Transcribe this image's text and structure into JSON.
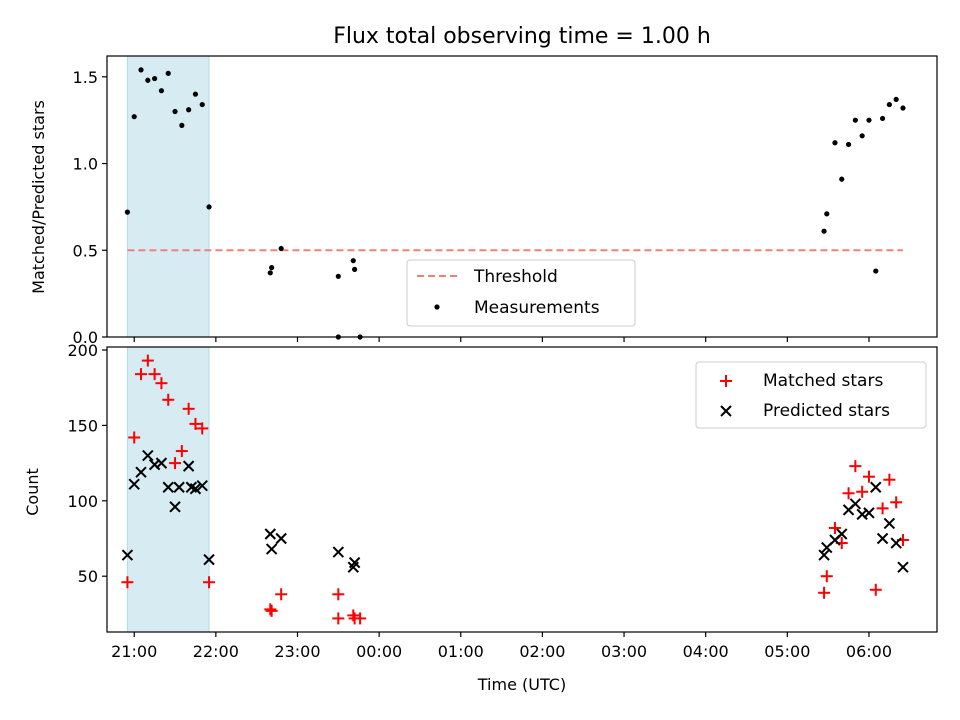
{
  "chart_data": [
    {
      "type": "scatter",
      "title": "Flux total observing time = 1.00 h",
      "xlabel": "",
      "ylabel": "Matched/Predicted stars",
      "xlim": [
        "20:40",
        "06:50"
      ],
      "ylim": [
        0,
        1.62
      ],
      "yticks": [
        {
          "value": 0,
          "label": "0.0"
        },
        {
          "value": 0.5,
          "label": "0.5"
        },
        {
          "value": 1.0,
          "label": "1.0"
        },
        {
          "value": 1.5,
          "label": "1.5"
        }
      ],
      "shaded_span": {
        "x": [
          "20:55",
          "21:55"
        ],
        "color": "#add8e6"
      },
      "threshold": {
        "name": "Threshold",
        "value": 0.5,
        "x": [
          "20:55",
          "06:25"
        ],
        "color": "#f08080"
      },
      "legend": {
        "placement": "lower-center",
        "entries": [
          "Threshold",
          "Measurements"
        ]
      },
      "series": [
        {
          "name": "Measurements",
          "color": "#000000",
          "points": [
            {
              "x": "20:55",
              "y": 0.72
            },
            {
              "x": "21:00",
              "y": 1.27
            },
            {
              "x": "21:05",
              "y": 1.54
            },
            {
              "x": "21:10",
              "y": 1.48
            },
            {
              "x": "21:15",
              "y": 1.49
            },
            {
              "x": "21:20",
              "y": 1.42
            },
            {
              "x": "21:25",
              "y": 1.52
            },
            {
              "x": "21:30",
              "y": 1.3
            },
            {
              "x": "21:35",
              "y": 1.22
            },
            {
              "x": "21:40",
              "y": 1.31
            },
            {
              "x": "21:45",
              "y": 1.4
            },
            {
              "x": "21:50",
              "y": 1.34
            },
            {
              "x": "21:55",
              "y": 0.75
            },
            {
              "x": "22:40",
              "y": 0.37
            },
            {
              "x": "22:41",
              "y": 0.4
            },
            {
              "x": "22:48",
              "y": 0.51
            },
            {
              "x": "23:30",
              "y": 0.35
            },
            {
              "x": "23:30",
              "y": 0.0
            },
            {
              "x": "23:41",
              "y": 0.44
            },
            {
              "x": "23:42",
              "y": 0.39
            },
            {
              "x": "23:46",
              "y": 0.0
            },
            {
              "x": "05:27",
              "y": 0.61
            },
            {
              "x": "05:29",
              "y": 0.71
            },
            {
              "x": "05:35",
              "y": 1.12
            },
            {
              "x": "05:40",
              "y": 0.91
            },
            {
              "x": "05:45",
              "y": 1.11
            },
            {
              "x": "05:50",
              "y": 1.25
            },
            {
              "x": "05:55",
              "y": 1.16
            },
            {
              "x": "06:00",
              "y": 1.25
            },
            {
              "x": "06:05",
              "y": 0.38
            },
            {
              "x": "06:10",
              "y": 1.26
            },
            {
              "x": "06:15",
              "y": 1.34
            },
            {
              "x": "06:20",
              "y": 1.37
            },
            {
              "x": "06:25",
              "y": 1.32
            }
          ]
        }
      ]
    },
    {
      "type": "scatter",
      "title": "",
      "xlabel": "Time (UTC)",
      "ylabel": "Count",
      "xlim": [
        "20:40",
        "06:50"
      ],
      "ylim": [
        13,
        202
      ],
      "yticks": [
        {
          "value": 50,
          "label": "50"
        },
        {
          "value": 100,
          "label": "100"
        },
        {
          "value": 150,
          "label": "150"
        },
        {
          "value": 200,
          "label": "200"
        }
      ],
      "xticks": [
        "21:00",
        "22:00",
        "23:00",
        "00:00",
        "01:00",
        "02:00",
        "03:00",
        "04:00",
        "05:00",
        "06:00"
      ],
      "shaded_span": {
        "x": [
          "20:55",
          "21:55"
        ],
        "color": "#add8e6"
      },
      "legend": {
        "placement": "upper-right",
        "entries": [
          "Matched stars",
          "Predicted stars"
        ]
      },
      "series": [
        {
          "name": "Matched stars",
          "marker": "plus",
          "color": "#ff0000",
          "points": [
            {
              "x": "20:55",
              "y": 46
            },
            {
              "x": "21:00",
              "y": 142
            },
            {
              "x": "21:05",
              "y": 184
            },
            {
              "x": "21:10",
              "y": 193
            },
            {
              "x": "21:15",
              "y": 184
            },
            {
              "x": "21:20",
              "y": 178
            },
            {
              "x": "21:25",
              "y": 167
            },
            {
              "x": "21:30",
              "y": 125
            },
            {
              "x": "21:35",
              "y": 133
            },
            {
              "x": "21:40",
              "y": 161
            },
            {
              "x": "21:45",
              "y": 151
            },
            {
              "x": "21:50",
              "y": 148
            },
            {
              "x": "21:55",
              "y": 46
            },
            {
              "x": "22:40",
              "y": 28
            },
            {
              "x": "22:41",
              "y": 27
            },
            {
              "x": "22:48",
              "y": 38
            },
            {
              "x": "23:30",
              "y": 38
            },
            {
              "x": "23:30",
              "y": 22
            },
            {
              "x": "23:41",
              "y": 24
            },
            {
              "x": "23:42",
              "y": 22
            },
            {
              "x": "23:46",
              "y": 22
            },
            {
              "x": "05:27",
              "y": 39
            },
            {
              "x": "05:29",
              "y": 50
            },
            {
              "x": "05:35",
              "y": 82
            },
            {
              "x": "05:40",
              "y": 72
            },
            {
              "x": "05:45",
              "y": 105
            },
            {
              "x": "05:50",
              "y": 123
            },
            {
              "x": "05:55",
              "y": 106
            },
            {
              "x": "06:00",
              "y": 116
            },
            {
              "x": "06:05",
              "y": 41
            },
            {
              "x": "06:10",
              "y": 95
            },
            {
              "x": "06:15",
              "y": 114
            },
            {
              "x": "06:20",
              "y": 99
            },
            {
              "x": "06:25",
              "y": 74
            }
          ]
        },
        {
          "name": "Predicted stars",
          "marker": "x",
          "color": "#000000",
          "points": [
            {
              "x": "20:55",
              "y": 64
            },
            {
              "x": "21:00",
              "y": 111
            },
            {
              "x": "21:05",
              "y": 119
            },
            {
              "x": "21:10",
              "y": 130
            },
            {
              "x": "21:15",
              "y": 124
            },
            {
              "x": "21:20",
              "y": 125
            },
            {
              "x": "21:25",
              "y": 109
            },
            {
              "x": "21:30",
              "y": 96
            },
            {
              "x": "21:33",
              "y": 109
            },
            {
              "x": "21:40",
              "y": 123
            },
            {
              "x": "21:42",
              "y": 109
            },
            {
              "x": "21:45",
              "y": 108
            },
            {
              "x": "21:50",
              "y": 110
            },
            {
              "x": "21:55",
              "y": 61
            },
            {
              "x": "22:40",
              "y": 78
            },
            {
              "x": "22:41",
              "y": 68
            },
            {
              "x": "22:48",
              "y": 75
            },
            {
              "x": "23:30",
              "y": 66
            },
            {
              "x": "23:41",
              "y": 56
            },
            {
              "x": "23:42",
              "y": 59
            },
            {
              "x": "05:27",
              "y": 64
            },
            {
              "x": "05:29",
              "y": 69
            },
            {
              "x": "05:35",
              "y": 74
            },
            {
              "x": "05:40",
              "y": 78
            },
            {
              "x": "05:45",
              "y": 94
            },
            {
              "x": "05:50",
              "y": 98
            },
            {
              "x": "05:55",
              "y": 91
            },
            {
              "x": "06:00",
              "y": 92
            },
            {
              "x": "06:05",
              "y": 109
            },
            {
              "x": "06:10",
              "y": 75
            },
            {
              "x": "06:15",
              "y": 85
            },
            {
              "x": "06:20",
              "y": 72
            },
            {
              "x": "06:25",
              "y": 56
            }
          ]
        }
      ]
    }
  ]
}
